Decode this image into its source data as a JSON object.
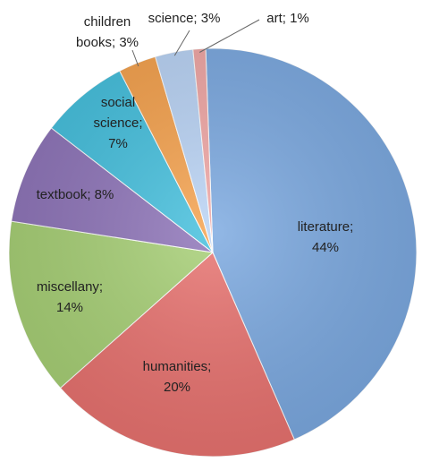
{
  "chart_data": {
    "type": "pie",
    "title": "",
    "slices": [
      {
        "name": "literature",
        "label": "literature;",
        "pct_label": "44%",
        "value": 44,
        "color": "#7aa8e0"
      },
      {
        "name": "humanities",
        "label": "humanities;",
        "pct_label": "20%",
        "value": 20,
        "color": "#e8716e"
      },
      {
        "name": "miscellany",
        "label": "miscellany;",
        "pct_label": "14%",
        "value": 14,
        "color": "#a6cf74"
      },
      {
        "name": "textbook",
        "label": "textbook; 8%",
        "pct_label": "",
        "value": 8,
        "color": "#8d73b8"
      },
      {
        "name": "social science",
        "label": "social",
        "label2": "science;",
        "pct_label": "7%",
        "value": 7,
        "color": "#43bfdd"
      },
      {
        "name": "children books",
        "label": "children",
        "label2": "books; 3%",
        "pct_label": "",
        "value": 3,
        "color": "#f5a14c"
      },
      {
        "name": "science",
        "label": "science; 3%",
        "pct_label": "",
        "value": 3,
        "color": "#b9d3f5"
      },
      {
        "name": "art",
        "label": "art; 1%",
        "pct_label": "",
        "value": 1,
        "color": "#f0a6a4"
      }
    ],
    "start_angle_deg": -2,
    "legend": "none"
  }
}
